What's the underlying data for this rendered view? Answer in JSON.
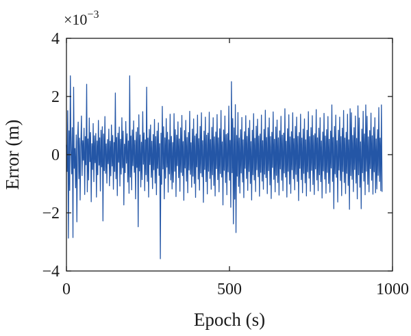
{
  "chart_data": {
    "type": "line",
    "title": "",
    "xlabel": "Epoch (s)",
    "ylabel": "Error (m)",
    "y_multiplier": {
      "base": "×10",
      "exponent": "−3"
    },
    "xlim": [
      0,
      1000
    ],
    "ylim": [
      -4,
      4
    ],
    "x_ticks": [
      0,
      500,
      1000
    ],
    "x_tick_labels": [
      "0",
      "500",
      "1000"
    ],
    "y_ticks": [
      -4,
      -2,
      0,
      2,
      4
    ],
    "y_tick_labels": [
      "−4",
      "−2",
      "0",
      "2",
      "4"
    ],
    "grid": false,
    "line_color": "#2456a6",
    "series": [
      {
        "x_start": 0,
        "x_step": 2,
        "values": [
          0.34,
          -0.58,
          1.51,
          -2.87,
          0.82,
          -1.23,
          2.71,
          0.15,
          -0.66,
          0.93,
          -2.85,
          2.32,
          -0.47,
          0.21,
          -1.14,
          0.68,
          -2.31,
          0.43,
          1.12,
          -0.83,
          0.57,
          -1.56,
          0.29,
          1.33,
          -0.72,
          0.48,
          -0.19,
          0.91,
          -1.37,
          0.62,
          -0.35,
          2.42,
          -1.28,
          0.54,
          -0.87,
          1.26,
          -0.24,
          0.76,
          -1.62,
          0.38,
          -0.51,
          1.07,
          -0.93,
          0.65,
          -0.28,
          0.73,
          -1.46,
          0.47,
          -0.69,
          1.18,
          -0.36,
          0.58,
          -1.25,
          0.84,
          -0.42,
          0.96,
          -2.28,
          0.71,
          -0.55,
          1.31,
          -0.64,
          0.37,
          -0.98,
          0.52,
          -0.31,
          0.88,
          -1.07,
          0.46,
          -0.73,
          1.02,
          -0.39,
          0.66,
          -1.19,
          0.42,
          -0.58,
          2.12,
          -0.83,
          0.59,
          -1.41,
          0.74,
          -0.26,
          0.95,
          -1.08,
          0.53,
          -0.67,
          1.27,
          -0.45,
          0.81,
          -1.73,
          0.36,
          -0.62,
          1.14,
          -0.29,
          0.72,
          -0.94,
          0.47,
          -1.33,
          2.71,
          -0.77,
          0.64,
          -1.21,
          0.85,
          -0.38,
          1.16,
          -0.61,
          0.49,
          -1.52,
          0.78,
          -0.44,
          0.93,
          -2.48,
          1.37,
          -0.56,
          0.68,
          -1.11,
          0.43,
          -0.86,
          1.48,
          -0.33,
          0.75,
          -1.24,
          0.51,
          -0.69,
          2.32,
          -0.92,
          0.57,
          -1.46,
          0.87,
          -0.34,
          1.02,
          -0.78,
          0.46,
          -1.17,
          0.69,
          -0.52,
          1.21,
          -0.98,
          0.62,
          -1.38,
          0.81,
          -0.47,
          1.09,
          -0.71,
          0.38,
          -3.58,
          0.74,
          -1.02,
          1.66,
          -0.49,
          0.96,
          -1.52,
          0.58,
          -0.81,
          1.24,
          -0.43,
          0.77,
          -1.29,
          0.51,
          -0.66,
          1.39,
          -0.87,
          0.63,
          -1.18,
          0.42,
          -0.95,
          1.41,
          -0.57,
          0.86,
          -1.44,
          0.67,
          -0.38,
          1.13,
          -0.79,
          0.54,
          -1.26,
          0.92,
          -0.61,
          1.35,
          -0.72,
          0.45,
          -1.57,
          0.83,
          -0.46,
          1.18,
          -0.91,
          0.59,
          -1.31,
          0.76,
          -0.53,
          1.49,
          -0.68,
          0.41,
          -1.12,
          0.88,
          -0.74,
          1.23,
          -0.99,
          0.64,
          -1.47,
          0.71,
          -0.42,
          1.36,
          -0.84,
          0.55,
          -1.22,
          0.97,
          -0.63,
          1.44,
          -0.76,
          0.48,
          -1.64,
          0.81,
          -0.51,
          1.29,
          -0.93,
          0.67,
          -1.35,
          0.74,
          -0.57,
          1.46,
          -0.82,
          0.52,
          -1.19,
          0.94,
          -0.69,
          1.27,
          -1.06,
          0.61,
          -1.42,
          0.78,
          -0.48,
          1.38,
          -0.86,
          0.58,
          -1.28,
          0.89,
          -0.65,
          1.52,
          -0.77,
          0.44,
          -1.73,
          0.85,
          -0.54,
          1.33,
          -0.96,
          0.69,
          -1.38,
          0.73,
          -0.59,
          1.67,
          -0.88,
          0.49,
          -1.81,
          2.51,
          -0.62,
          1.24,
          -2.38,
          0.92,
          -1.53,
          1.72,
          -2.68,
          0.66,
          -0.74,
          1.45,
          -1.09,
          0.57,
          -1.32,
          0.86,
          -0.63,
          1.28,
          -0.94,
          0.51,
          -1.48,
          0.79,
          -0.47,
          1.34,
          -0.82,
          0.63,
          -1.23,
          0.91,
          -0.58,
          1.18,
          -0.99,
          0.45,
          -1.56,
          0.84,
          -0.69,
          1.41,
          -0.87,
          0.56,
          -1.27,
          0.98,
          -0.52,
          1.22,
          -0.76,
          0.64,
          -1.43,
          0.71,
          -0.61,
          1.36,
          -0.91,
          0.48,
          -1.19,
          0.87,
          -0.67,
          1.53,
          -0.79,
          0.59,
          -1.34,
          0.93,
          -0.55,
          1.26,
          -1.04,
          0.62,
          -1.51,
          0.77,
          -0.44,
          1.47,
          -0.85,
          0.53,
          -1.28,
          0.95,
          -0.71,
          1.19,
          -0.96,
          0.58,
          -1.39,
          0.82,
          -0.49,
          1.32,
          -0.88,
          0.67,
          -1.24,
          0.74,
          -0.63,
          1.58,
          -0.77,
          0.46,
          -1.46,
          0.89,
          -0.57,
          1.37,
          -1.01,
          0.61,
          -1.33,
          0.79,
          -0.52,
          1.44,
          -0.83,
          0.55,
          -1.21,
          0.97,
          -0.68,
          1.29,
          -0.92,
          0.63,
          -1.58,
          0.76,
          -0.47,
          1.39,
          -0.86,
          0.57,
          -1.31,
          0.88,
          -0.64,
          1.23,
          -0.97,
          0.51,
          -1.42,
          0.84,
          -0.59,
          1.48,
          -0.81,
          0.62,
          -1.26,
          0.93,
          -0.54,
          1.34,
          -1.03,
          0.66,
          -1.37,
          0.72,
          -0.49,
          1.55,
          -0.87,
          0.58,
          -1.24,
          0.91,
          -0.69,
          1.27,
          -0.93,
          0.47,
          -1.49,
          0.78,
          -0.56,
          1.42,
          -0.84,
          0.64,
          -1.33,
          0.86,
          -0.61,
          1.31,
          -0.99,
          0.53,
          -1.29,
          0.81,
          -0.46,
          1.71,
          -0.92,
          0.59,
          -1.86,
          0.97,
          -0.66,
          1.36,
          -0.78,
          0.48,
          -1.63,
          0.84,
          -0.53,
          1.29,
          -0.89,
          0.62,
          -1.41,
          0.91,
          -0.58,
          1.52,
          -0.96,
          0.57,
          -1.34,
          0.77,
          -0.64,
          1.39,
          -1.06,
          0.51,
          -1.88,
          1.58,
          -0.72,
          1.44,
          -0.85,
          0.66,
          -1.27,
          0.93,
          -0.51,
          1.33,
          -0.98,
          0.56,
          -1.52,
          1.68,
          -0.69,
          1.26,
          -1.12,
          0.44,
          -1.86,
          0.88,
          -0.62,
          1.49,
          -0.91,
          0.71,
          -1.38,
          1.71,
          -0.57,
          1.32,
          -1.02,
          0.61,
          -1.28,
          0.83,
          -0.48,
          1.43,
          -0.88,
          0.65,
          -1.36,
          0.94,
          -0.59,
          1.27,
          -1.31,
          0.54,
          -1.18,
          0.86,
          -0.71,
          1.62,
          -0.92,
          0.57,
          -1.24,
          1.71,
          -1.28
        ]
      }
    ]
  }
}
